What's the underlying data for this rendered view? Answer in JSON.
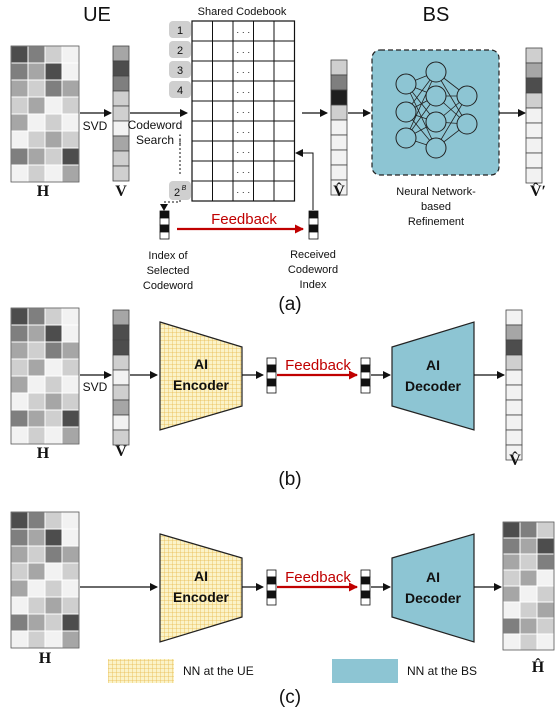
{
  "panel_a": {
    "ue_label": "UE",
    "bs_label": "BS",
    "codebook_title": "Shared Codebook",
    "codebook_rows": [
      "1",
      "2",
      "3",
      "4",
      "⋮",
      "2",
      "B"
    ],
    "codebook_dots": "· · ·",
    "svd_label": "SVD",
    "codeword_search": [
      "Codeword",
      "Search"
    ],
    "feedback_label": "Feedback",
    "index_selected": [
      "Index of",
      "Selected",
      "Codeword"
    ],
    "received_index": [
      "Received",
      "Codeword",
      "Index"
    ],
    "nn_refinement": [
      "Neural Network-",
      "based",
      "Refinement"
    ],
    "h_label": "H",
    "v_label": "V",
    "vhat_label": "V̂",
    "vhat_prime_label": "V̂ʹ",
    "caption": "(a)"
  },
  "panel_b": {
    "svd_label": "SVD",
    "encoder_label": [
      "AI",
      "Encoder"
    ],
    "decoder_label": [
      "AI",
      "Decoder"
    ],
    "feedback_label": "Feedback",
    "h_label": "H",
    "v_label": "V",
    "vhat_label": "V̂",
    "caption": "(b)"
  },
  "panel_c": {
    "encoder_label": [
      "AI",
      "Encoder"
    ],
    "decoder_label": [
      "AI",
      "Decoder"
    ],
    "feedback_label": "Feedback",
    "h_label": "H",
    "hhat_label": "Ĥ",
    "legend_ue": "NN at the UE",
    "legend_bs": "NN at the BS",
    "caption": "(c)"
  },
  "colors": {
    "feedback_red": "#c00000",
    "nn_bs": "#8dc5d3",
    "nn_ue_fill": "#fbf3c8",
    "nn_ue_grid": "#e8b84a"
  }
}
